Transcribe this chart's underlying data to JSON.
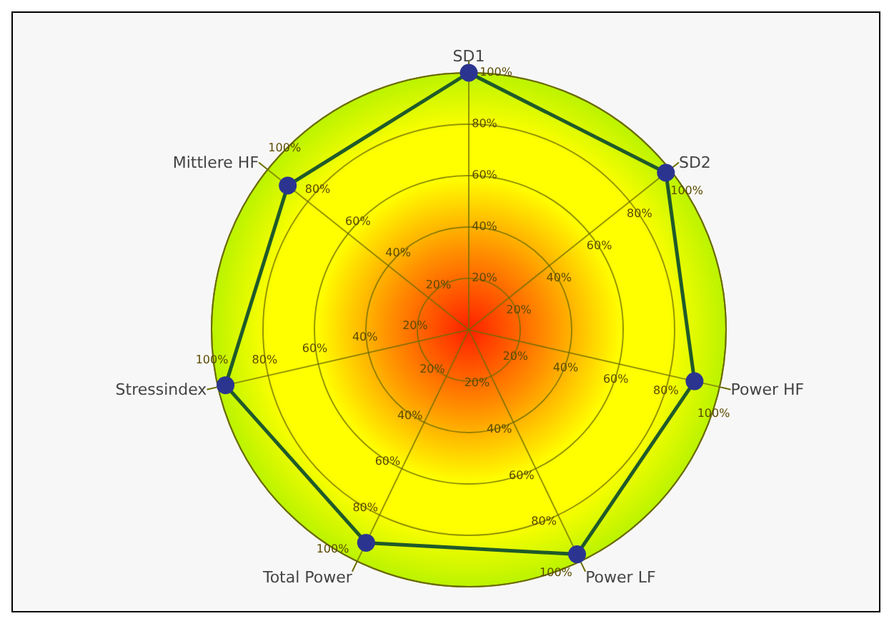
{
  "chart_data": {
    "type": "radar",
    "categories": [
      "SD1",
      "SD2",
      "Power HF",
      "Power LF",
      "Total Power",
      "Stressindex",
      "Mittlere HF"
    ],
    "series": [
      {
        "color": "#1f5a2a",
        "values": [
          100,
          98,
          90,
          97,
          92,
          97,
          90
        ]
      }
    ],
    "ylim": [
      0,
      100
    ],
    "yticks": [
      {
        "value": 20,
        "label": "20%"
      },
      {
        "value": 40,
        "label": "40%"
      },
      {
        "value": 60,
        "label": "60%"
      },
      {
        "value": 80,
        "label": "80%"
      },
      {
        "value": 100,
        "label": "100%"
      }
    ],
    "grid": true,
    "marker": "circle"
  }
}
